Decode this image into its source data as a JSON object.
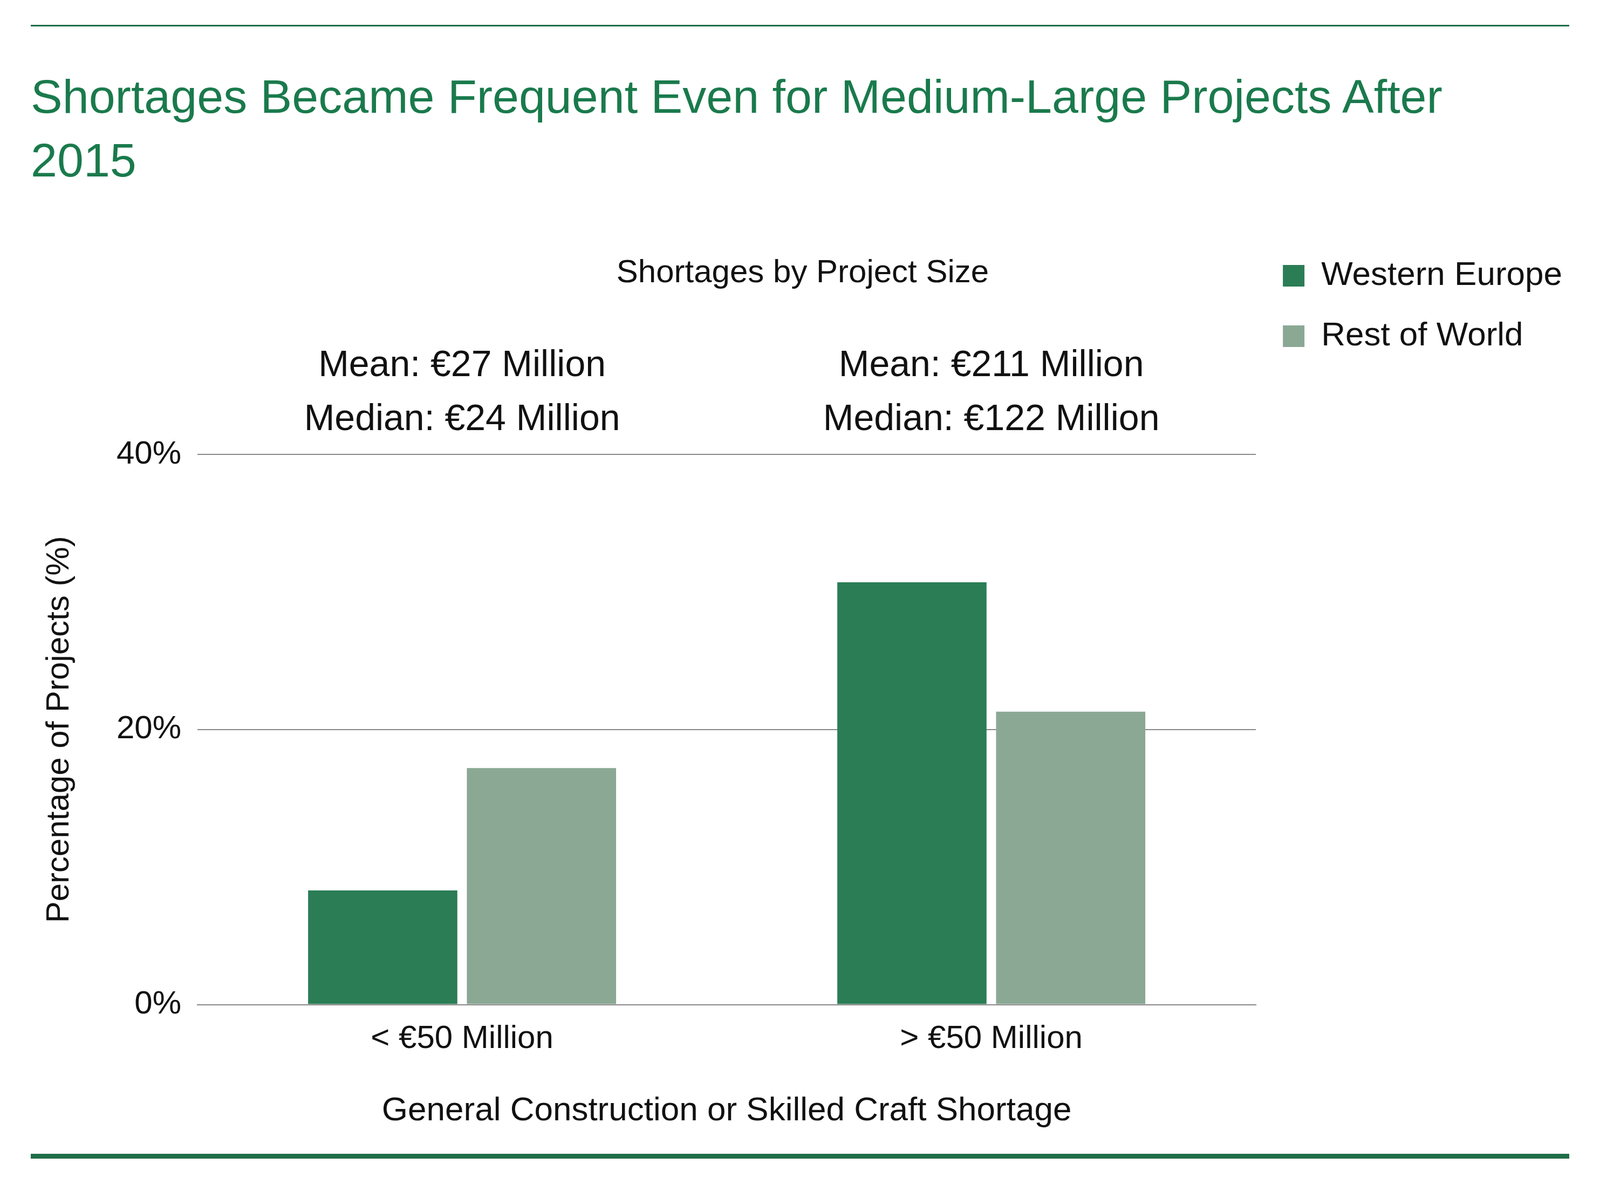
{
  "chart_data": {
    "type": "bar",
    "title": "Shortages Became Frequent Even for Medium-Large Projects After 2015",
    "subtitle": "Shortages by Project Size",
    "categories": [
      "< €50 Million",
      "> €50 Million"
    ],
    "series": [
      {
        "name": "Western Europe",
        "color": "#2b7d55",
        "values": [
          8.3,
          30.7
        ]
      },
      {
        "name": "Rest of World",
        "color": "#8ba894",
        "values": [
          17.2,
          21.3
        ]
      }
    ],
    "x_label": "General Construction or Skilled Craft Shortage",
    "y_label": "Percentage of Projects (%)",
    "ylim": [
      0,
      40
    ],
    "yticks": [
      {
        "value": 0,
        "label": "0%"
      },
      {
        "value": 20,
        "label": "20%"
      },
      {
        "value": 40,
        "label": "40%"
      }
    ],
    "grid": true,
    "legend": "right",
    "annotations": [
      {
        "category": "< €50 Million",
        "lines": [
          "Mean: €27 Million",
          "Median: €24 Million"
        ]
      },
      {
        "category": "> €50 Million",
        "lines": [
          "Mean: €211 Million",
          "Median: €122 Million"
        ]
      }
    ]
  }
}
